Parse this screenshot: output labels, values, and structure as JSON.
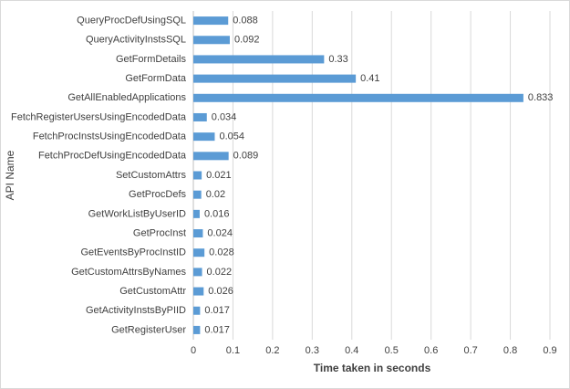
{
  "chart_data": {
    "type": "bar",
    "orientation": "horizontal",
    "x_label": "Time taken in seconds",
    "y_label": "API Name",
    "categories": [
      "QueryProcDefUsingSQL",
      "QueryActivityInstsSQL",
      "GetFormDetails",
      "GetFormData",
      "GetAllEnabledApplications",
      "FetchRegisterUsersUsingEncodedData",
      "FetchProcInstsUsingEncodedData",
      "FetchProcDefUsingEncodedData",
      "SetCustomAttrs",
      "GetProcDefs",
      "GetWorkListByUserID",
      "GetProcInst",
      "GetEventsByProcInstID",
      "GetCustomAttrsByNames",
      "GetCustomAttr",
      "GetActivityInstsByPIID",
      "GetRegisterUser"
    ],
    "values": [
      0.088,
      0.092,
      0.33,
      0.41,
      0.833,
      0.034,
      0.054,
      0.089,
      0.021,
      0.02,
      0.016,
      0.024,
      0.028,
      0.022,
      0.026,
      0.017,
      0.017
    ],
    "color": "#5b9bd5",
    "xlim": [
      0,
      0.9
    ],
    "xticks": [
      0,
      0.1,
      0.2,
      0.3,
      0.4,
      0.5,
      0.6,
      0.7,
      0.8,
      0.9
    ],
    "grid": true
  }
}
